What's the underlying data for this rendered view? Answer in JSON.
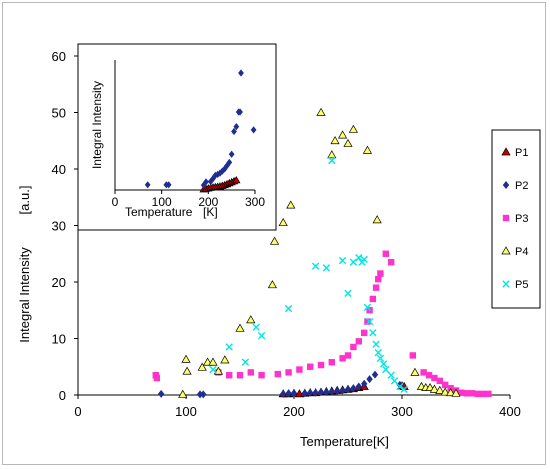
{
  "chart_data": [
    {
      "type": "scatter",
      "title": "",
      "xlabel": "Temperature",
      "xunit": "[K]",
      "ylabel": "Integral  Intensity",
      "yunit": "[a.u.]",
      "xlim": [
        0,
        400
      ],
      "ylim": [
        0,
        60
      ],
      "xticks": [
        "0",
        "100",
        "200",
        "300",
        "400"
      ],
      "yticks": [
        "0",
        "10",
        "20",
        "30",
        "40",
        "50",
        "60"
      ],
      "grid": false,
      "legend_position": "right",
      "series": [
        {
          "name": "P1",
          "marker": "triangle",
          "color": "#c00000",
          "points": [
            [
              190,
              0.2
            ],
            [
              195,
              0.2
            ],
            [
              200,
              0.3
            ],
            [
              205,
              0.2
            ],
            [
              210,
              0.3
            ],
            [
              215,
              0.4
            ],
            [
              220,
              0.4
            ],
            [
              225,
              0.5
            ],
            [
              230,
              0.6
            ],
            [
              235,
              0.7
            ],
            [
              240,
              0.8
            ],
            [
              245,
              0.9
            ],
            [
              250,
              1.0
            ],
            [
              255,
              1.1
            ],
            [
              260,
              1.3
            ],
            [
              265,
              1.5
            ],
            [
              300,
              1.6
            ],
            [
              302,
              1.5
            ]
          ]
        },
        {
          "name": "P2",
          "marker": "diamond",
          "color": "#1f2f8f",
          "points": [
            [
              77,
              0.2
            ],
            [
              113,
              0.1
            ],
            [
              116,
              0.1
            ],
            [
              190,
              0.2
            ],
            [
              195,
              0.3
            ],
            [
              200,
              0.3
            ],
            [
              210,
              0.3
            ],
            [
              215,
              0.4
            ],
            [
              220,
              0.4
            ],
            [
              225,
              0.5
            ],
            [
              230,
              0.5
            ],
            [
              235,
              0.6
            ],
            [
              240,
              0.7
            ],
            [
              245,
              0.8
            ],
            [
              250,
              1.0
            ],
            [
              255,
              1.2
            ],
            [
              260,
              1.5
            ],
            [
              265,
              2.0
            ],
            [
              270,
              2.8
            ],
            [
              275,
              3.6
            ],
            [
              298,
              1.8
            ]
          ]
        },
        {
          "name": "P3",
          "marker": "square",
          "color": "#ff33cc",
          "points": [
            [
              72,
              3.5
            ],
            [
              73,
              3.0
            ],
            [
              130,
              4.0
            ],
            [
              140,
              3.5
            ],
            [
              150,
              3.5
            ],
            [
              160,
              4.0
            ],
            [
              170,
              3.5
            ],
            [
              185,
              3.7
            ],
            [
              195,
              4.0
            ],
            [
              205,
              4.5
            ],
            [
              215,
              5.0
            ],
            [
              225,
              5.3
            ],
            [
              235,
              5.8
            ],
            [
              245,
              6.5
            ],
            [
              250,
              7.0
            ],
            [
              255,
              8.5
            ],
            [
              260,
              9.5
            ],
            [
              265,
              11.0
            ],
            [
              268,
              13.0
            ],
            [
              270,
              15.0
            ],
            [
              273,
              17.0
            ],
            [
              276,
              19.0
            ],
            [
              278,
              20.5
            ],
            [
              280,
              21.5
            ],
            [
              285,
              25.0
            ],
            [
              290,
              23.5
            ],
            [
              310,
              7.0
            ],
            [
              320,
              4.0
            ],
            [
              325,
              3.5
            ],
            [
              330,
              3.0
            ],
            [
              335,
              2.5
            ],
            [
              340,
              1.8
            ],
            [
              345,
              1.2
            ],
            [
              350,
              0.8
            ],
            [
              355,
              0.4
            ],
            [
              360,
              0.3
            ],
            [
              365,
              0.3
            ],
            [
              370,
              0.2
            ],
            [
              375,
              0.2
            ],
            [
              380,
              0.2
            ]
          ]
        },
        {
          "name": "P4",
          "marker": "triangle",
          "color": "#ffff66",
          "points": [
            [
              97,
              0.1
            ],
            [
              100,
              6.3
            ],
            [
              101,
              4.2
            ],
            [
              115,
              4.9
            ],
            [
              120,
              5.8
            ],
            [
              125,
              5.8
            ],
            [
              130,
              4.2
            ],
            [
              136,
              6.2
            ],
            [
              150,
              11.8
            ],
            [
              160,
              13.3
            ],
            [
              180,
              19.5
            ],
            [
              182,
              27.2
            ],
            [
              190,
              30.5
            ],
            [
              197,
              33.6
            ],
            [
              225,
              50.0
            ],
            [
              235,
              42.5
            ],
            [
              238,
              45.0
            ],
            [
              245,
              46.0
            ],
            [
              250,
              44.5
            ],
            [
              255,
              47.0
            ],
            [
              268,
              43.3
            ],
            [
              277,
              31.0
            ],
            [
              312,
              4.0
            ],
            [
              318,
              1.5
            ],
            [
              322,
              1.3
            ],
            [
              326,
              1.3
            ],
            [
              330,
              1.0
            ],
            [
              335,
              0.8
            ],
            [
              340,
              0.5
            ],
            [
              345,
              0.4
            ],
            [
              350,
              0.3
            ]
          ]
        },
        {
          "name": "P5",
          "marker": "x",
          "color": "#00e5e5",
          "points": [
            [
              125,
              4.5
            ],
            [
              140,
              8.5
            ],
            [
              155,
              5.8
            ],
            [
              165,
              12.0
            ],
            [
              170,
              10.5
            ],
            [
              195,
              15.3
            ],
            [
              220,
              22.8
            ],
            [
              230,
              22.5
            ],
            [
              235,
              41.5
            ],
            [
              245,
              23.8
            ],
            [
              250,
              18.0
            ],
            [
              255,
              23.5
            ],
            [
              260,
              24.3
            ],
            [
              263,
              23.5
            ],
            [
              265,
              24.0
            ],
            [
              268,
              15.5
            ],
            [
              270,
              13.0
            ],
            [
              273,
              11.0
            ],
            [
              276,
              9.0
            ],
            [
              278,
              7.5
            ],
            [
              280,
              6.5
            ],
            [
              283,
              5.5
            ],
            [
              285,
              4.5
            ],
            [
              290,
              3.5
            ],
            [
              293,
              2.5
            ],
            [
              298,
              1.5
            ],
            [
              302,
              1.0
            ]
          ]
        }
      ]
    },
    {
      "type": "scatter",
      "title": "",
      "xlabel": "Temperature",
      "xunit": "[K]",
      "ylabel": "Integral  Intensity",
      "xlim": [
        0,
        300
      ],
      "xticks": [
        "0",
        "100",
        "200",
        "300"
      ],
      "yticks": [],
      "grid": false,
      "legend_position": "none",
      "series": [
        {
          "marker": "triangle",
          "color": "#c00000",
          "points": [
            [
              190,
              0.2
            ],
            [
              195,
              0.4
            ],
            [
              200,
              0.5
            ],
            [
              205,
              0.7
            ],
            [
              210,
              0.8
            ],
            [
              215,
              0.9
            ],
            [
              220,
              1.0
            ],
            [
              225,
              1.1
            ],
            [
              230,
              1.3
            ],
            [
              235,
              1.5
            ],
            [
              240,
              1.8
            ],
            [
              245,
              2.1
            ],
            [
              250,
              2.4
            ],
            [
              255,
              2.7
            ],
            [
              260,
              3.0
            ]
          ]
        },
        {
          "marker": "diamond",
          "color": "#1f2f8f",
          "points": [
            [
              70,
              1.6
            ],
            [
              110,
              1.6
            ],
            [
              115,
              1.6
            ],
            [
              190,
              1.5
            ],
            [
              195,
              2.5
            ],
            [
              205,
              2.6
            ],
            [
              210,
              3.5
            ],
            [
              215,
              4.5
            ],
            [
              220,
              4.8
            ],
            [
              225,
              5.2
            ],
            [
              230,
              5.8
            ],
            [
              235,
              6.5
            ],
            [
              240,
              7.5
            ],
            [
              245,
              8.5
            ],
            [
              250,
              11.0
            ],
            [
              255,
              18.0
            ],
            [
              260,
              19.5
            ],
            [
              265,
              24.0
            ],
            [
              268,
              24.0
            ],
            [
              270,
              36.0
            ],
            [
              297,
              18.5
            ]
          ]
        }
      ]
    }
  ]
}
